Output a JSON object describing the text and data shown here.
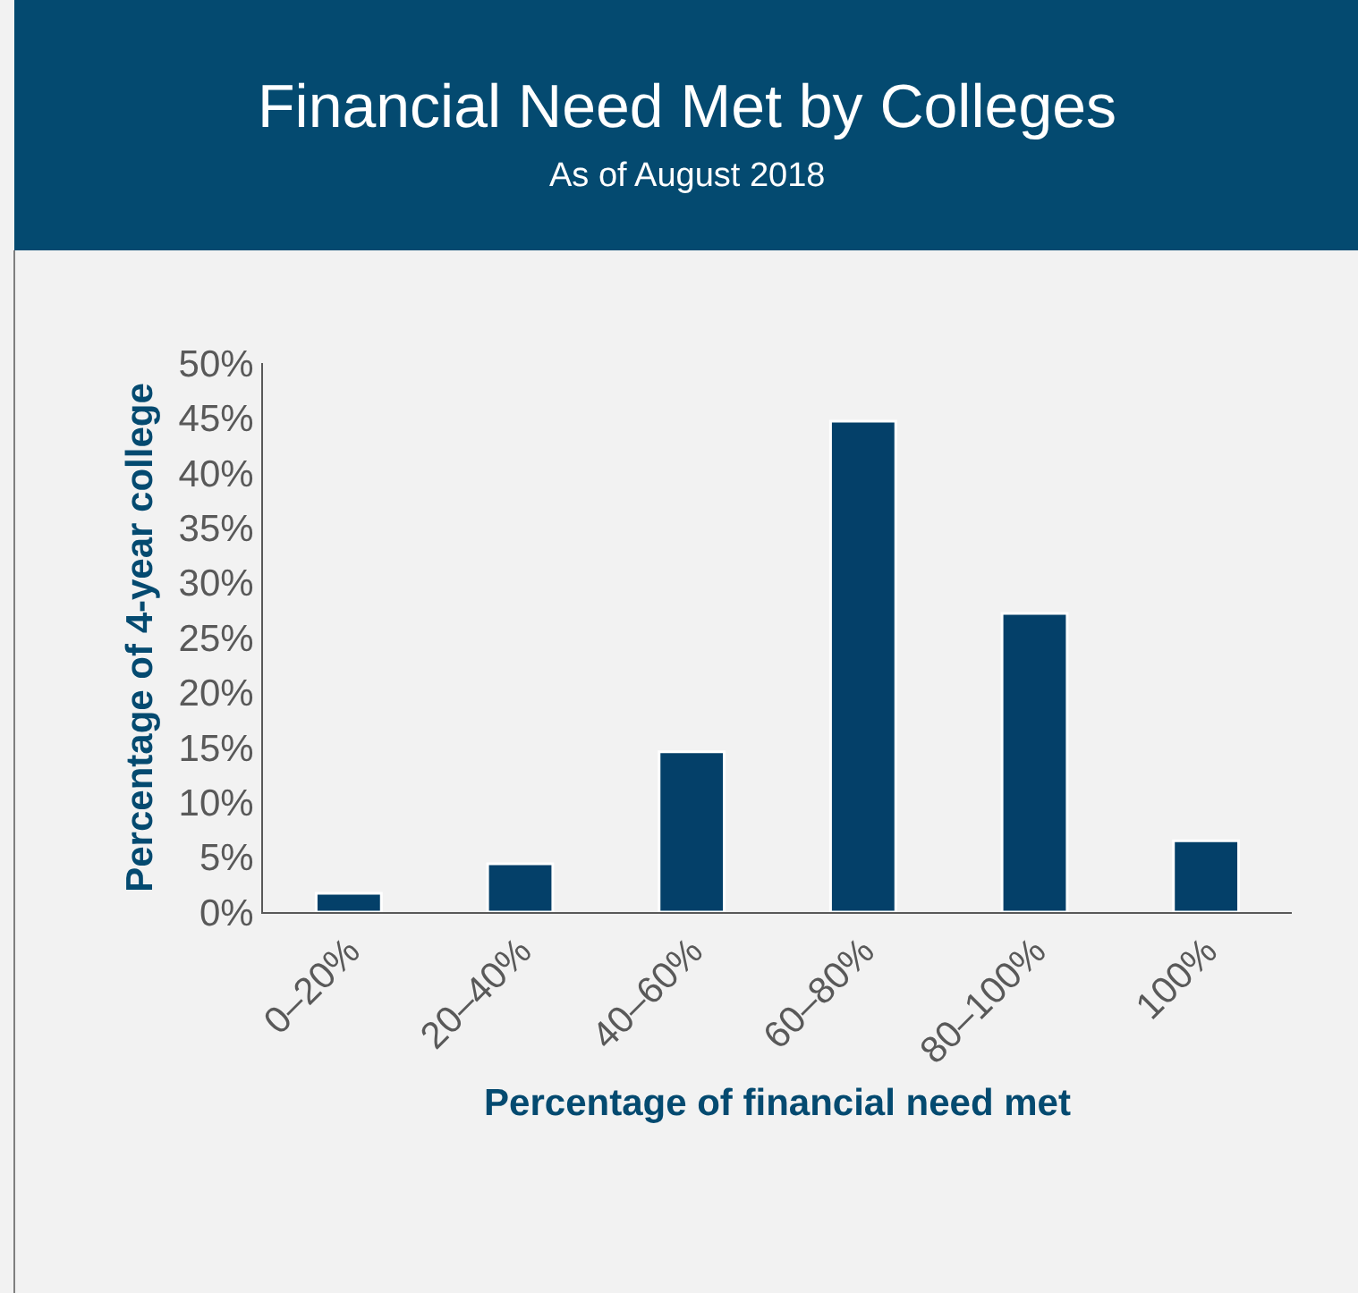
{
  "chart_data": {
    "type": "bar",
    "title": "Financial Need Met by Colleges",
    "subtitle": "As of August 2018",
    "xlabel": "Percentage of financial need met",
    "ylabel": "Percentage of 4-year college",
    "categories": [
      "0–20%",
      "20–40%",
      "40–60%",
      "60–80%",
      "80–100%",
      "100%"
    ],
    "values": [
      1.7,
      4.4,
      14.6,
      44.7,
      27.2,
      6.5
    ],
    "color": "#044069",
    "ylim": [
      0,
      50
    ],
    "yticks": [
      {
        "value": 0,
        "label": "0%"
      },
      {
        "value": 5,
        "label": "5%"
      },
      {
        "value": 10,
        "label": "10%"
      },
      {
        "value": 15,
        "label": "15%"
      },
      {
        "value": 20,
        "label": "20%"
      },
      {
        "value": 25,
        "label": "25%"
      },
      {
        "value": 30,
        "label": "30%"
      },
      {
        "value": 35,
        "label": "35%"
      },
      {
        "value": 40,
        "label": "40%"
      },
      {
        "value": 45,
        "label": "45%"
      },
      {
        "value": 50,
        "label": "50%"
      }
    ],
    "grid": false
  }
}
